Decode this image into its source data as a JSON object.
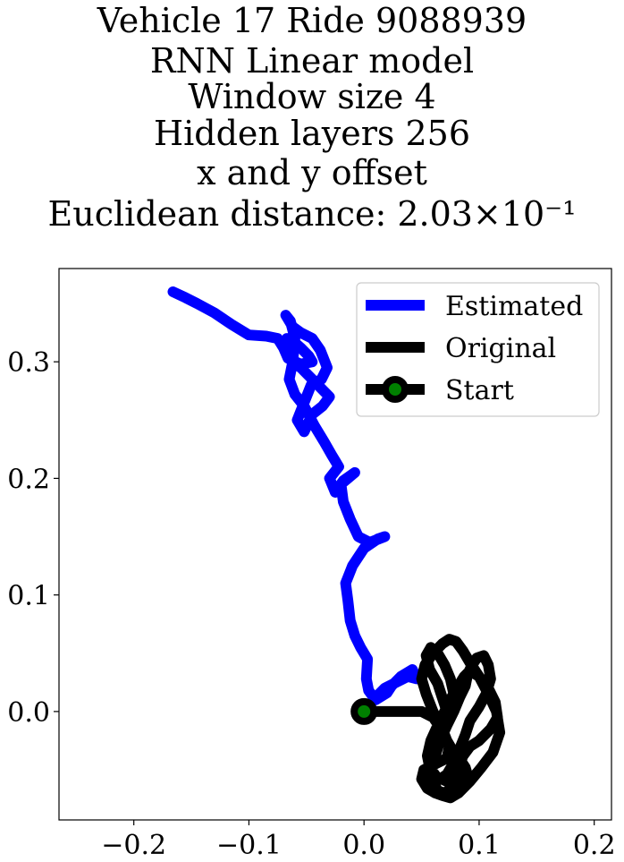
{
  "chart_data": {
    "type": "line",
    "title_lines": [
      "Vehicle 17 Ride 9088939",
      "RNN Linear model",
      "Window size 4",
      "Hidden layers 256",
      "x and y offset",
      "Euclidean distance: 2.03×10⁻¹"
    ],
    "xlabel": "",
    "ylabel": "",
    "xlim": [
      -0.265,
      0.215
    ],
    "ylim": [
      -0.093,
      0.38
    ],
    "x_ticks": [
      -0.2,
      -0.1,
      0.0,
      0.1,
      0.2
    ],
    "x_tick_labels": [
      "−0.2",
      "−0.1",
      "0.0",
      "0.1",
      "0.2"
    ],
    "y_ticks": [
      0.0,
      0.1,
      0.2,
      0.3
    ],
    "y_tick_labels": [
      "0.0",
      "0.1",
      "0.2",
      "0.3"
    ],
    "grid": false,
    "legend_position": "top-right",
    "series": [
      {
        "name": "Estimated",
        "color": "#0000ff",
        "x": [
          0.0,
          0.008,
          0.018,
          0.028,
          0.038,
          0.046,
          0.042,
          0.032,
          0.024,
          0.02,
          0.01,
          0.004,
          0.002,
          0.003,
          -0.003,
          -0.008,
          -0.012,
          -0.014,
          -0.016,
          -0.01,
          -0.0,
          0.012,
          0.018,
          0.005,
          -0.005,
          -0.012,
          -0.018,
          -0.02,
          -0.014,
          -0.008,
          -0.018,
          -0.025,
          -0.03,
          -0.022,
          -0.028,
          -0.035,
          -0.043,
          -0.052,
          -0.06,
          -0.065,
          -0.062,
          -0.06,
          -0.064,
          -0.068,
          -0.062,
          -0.055,
          -0.045,
          -0.038,
          -0.032,
          -0.037,
          -0.046,
          -0.052,
          -0.058,
          -0.052,
          -0.045,
          -0.036,
          -0.03,
          -0.045,
          -0.055,
          -0.062,
          -0.066,
          -0.07,
          -0.067,
          -0.062,
          -0.055,
          -0.048,
          -0.045,
          -0.055,
          -0.066,
          -0.07,
          -0.075,
          -0.085,
          -0.1,
          -0.115,
          -0.13,
          -0.145,
          -0.155,
          -0.166
        ],
        "y": [
          0.0,
          0.01,
          0.02,
          0.025,
          0.03,
          0.028,
          0.036,
          0.03,
          0.022,
          0.016,
          0.01,
          0.018,
          0.028,
          0.045,
          0.055,
          0.065,
          0.078,
          0.095,
          0.11,
          0.125,
          0.14,
          0.148,
          0.15,
          0.145,
          0.15,
          0.165,
          0.18,
          0.195,
          0.2,
          0.205,
          0.198,
          0.188,
          0.2,
          0.21,
          0.22,
          0.232,
          0.245,
          0.262,
          0.272,
          0.285,
          0.3,
          0.32,
          0.335,
          0.34,
          0.33,
          0.325,
          0.32,
          0.31,
          0.295,
          0.285,
          0.28,
          0.265,
          0.25,
          0.24,
          0.255,
          0.262,
          0.27,
          0.285,
          0.295,
          0.3,
          0.31,
          0.315,
          0.32,
          0.318,
          0.312,
          0.305,
          0.3,
          0.298,
          0.303,
          0.312,
          0.32,
          0.322,
          0.323,
          0.332,
          0.342,
          0.35,
          0.355,
          0.36
        ]
      },
      {
        "name": "Original",
        "color": "#000000",
        "x": [
          0.0,
          0.03,
          0.05,
          0.06,
          0.065,
          0.07,
          0.074,
          0.072,
          0.06,
          0.052,
          0.05,
          0.055,
          0.062,
          0.068,
          0.075,
          0.082,
          0.092,
          0.102,
          0.112,
          0.118,
          0.115,
          0.108,
          0.1,
          0.092,
          0.086,
          0.08,
          0.074,
          0.068,
          0.06,
          0.053,
          0.05,
          0.054,
          0.06,
          0.066,
          0.072,
          0.078,
          0.084,
          0.088,
          0.09,
          0.086,
          0.08,
          0.072,
          0.063,
          0.057,
          0.055,
          0.058,
          0.064,
          0.07,
          0.076,
          0.082,
          0.087,
          0.092,
          0.1,
          0.108,
          0.114,
          0.116,
          0.11,
          0.1,
          0.092,
          0.086,
          0.082,
          0.08,
          0.076,
          0.07,
          0.064,
          0.06,
          0.058,
          0.062,
          0.066,
          0.072,
          0.078,
          0.083,
          0.088,
          0.09,
          0.094,
          0.098,
          0.104,
          0.108,
          0.11,
          0.106,
          0.1,
          0.092,
          0.088,
          0.083,
          0.078,
          0.072,
          0.066,
          0.06,
          0.058,
          0.062,
          0.068,
          0.072,
          0.076,
          0.078,
          0.075,
          0.07,
          0.064,
          0.058,
          0.054,
          0.057,
          0.064,
          0.068,
          0.072
        ],
        "y": [
          0.0,
          0.0,
          0.0,
          -0.005,
          -0.012,
          -0.02,
          -0.03,
          -0.04,
          -0.046,
          -0.05,
          -0.058,
          -0.066,
          -0.07,
          -0.072,
          -0.074,
          -0.07,
          -0.06,
          -0.048,
          -0.035,
          -0.018,
          0.0,
          0.015,
          0.03,
          0.042,
          0.052,
          0.06,
          0.062,
          0.058,
          0.05,
          0.04,
          0.028,
          0.015,
          0.0,
          -0.012,
          -0.025,
          -0.035,
          -0.042,
          -0.048,
          -0.055,
          -0.06,
          -0.062,
          -0.06,
          -0.056,
          -0.048,
          -0.038,
          -0.025,
          -0.012,
          0.0,
          0.012,
          0.022,
          0.03,
          0.035,
          0.03,
          0.02,
          0.008,
          -0.005,
          -0.015,
          -0.025,
          -0.03,
          -0.038,
          -0.048,
          -0.058,
          -0.066,
          -0.07,
          -0.068,
          -0.06,
          -0.05,
          -0.038,
          -0.025,
          -0.012,
          0.0,
          0.012,
          0.022,
          0.032,
          0.04,
          0.046,
          0.048,
          0.04,
          0.028,
          0.015,
          0.004,
          -0.008,
          -0.02,
          -0.032,
          -0.044,
          -0.054,
          -0.058,
          -0.055,
          -0.046,
          -0.035,
          -0.022,
          -0.01,
          0.002,
          0.015,
          0.028,
          0.04,
          0.05,
          0.055,
          0.048,
          0.036,
          0.024,
          0.012,
          0.0
        ]
      }
    ],
    "start_marker": {
      "name": "Start",
      "x": 0.0,
      "y": 0.0,
      "face_color": "#008000",
      "edge_color": "#000000"
    }
  }
}
